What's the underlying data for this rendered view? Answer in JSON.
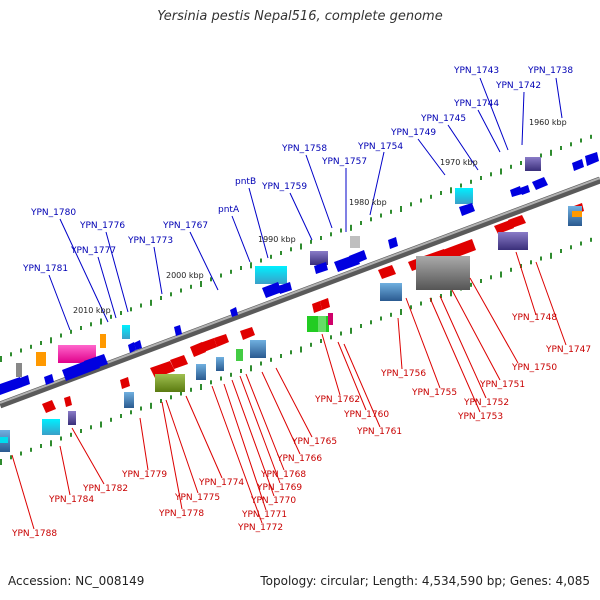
{
  "title": "Yersinia pestis Nepal516, complete genome",
  "footer": {
    "accession": "Accession: NC_008149",
    "summary": "Topology: circular; Length: 4,534,590 bp; Genes: 4,085"
  },
  "colors": {
    "backbone": "#808080",
    "forward_label": "#0000b4",
    "reverse_label": "#c80000",
    "forward_line": "#0000c8",
    "reverse_line": "#dc0000",
    "tick": "#2e8b2e"
  },
  "ruler": [
    "1960 kbp",
    "1970 kbp",
    "1980 kbp",
    "1990 kbp",
    "2000 kbp",
    "2010 kbp"
  ],
  "forward_labels": [
    "YPN_1738",
    "YPN_1742",
    "YPN_1743",
    "YPN_1744",
    "YPN_1745",
    "YPN_1749",
    "YPN_1754",
    "YPN_1757",
    "YPN_1758",
    "YPN_1759",
    "pntB",
    "pntA",
    "YPN_1767",
    "YPN_1773",
    "YPN_1776",
    "YPN_1777",
    "YPN_1780",
    "YPN_1781"
  ],
  "reverse_labels": [
    "YPN_1747",
    "YPN_1748",
    "YPN_1750",
    "YPN_1751",
    "YPN_1752",
    "YPN_1753",
    "YPN_1755",
    "YPN_1756",
    "YPN_1760",
    "YPN_1761",
    "YPN_1762",
    "YPN_1765",
    "YPN_1766",
    "YPN_1768",
    "YPN_1769",
    "YPN_1770",
    "YPN_1771",
    "YPN_1772",
    "YPN_1774",
    "YPN_1775",
    "YPN_1778",
    "YPN_1779",
    "YPN_1782",
    "YPN_1784",
    "YPN_1788"
  ]
}
